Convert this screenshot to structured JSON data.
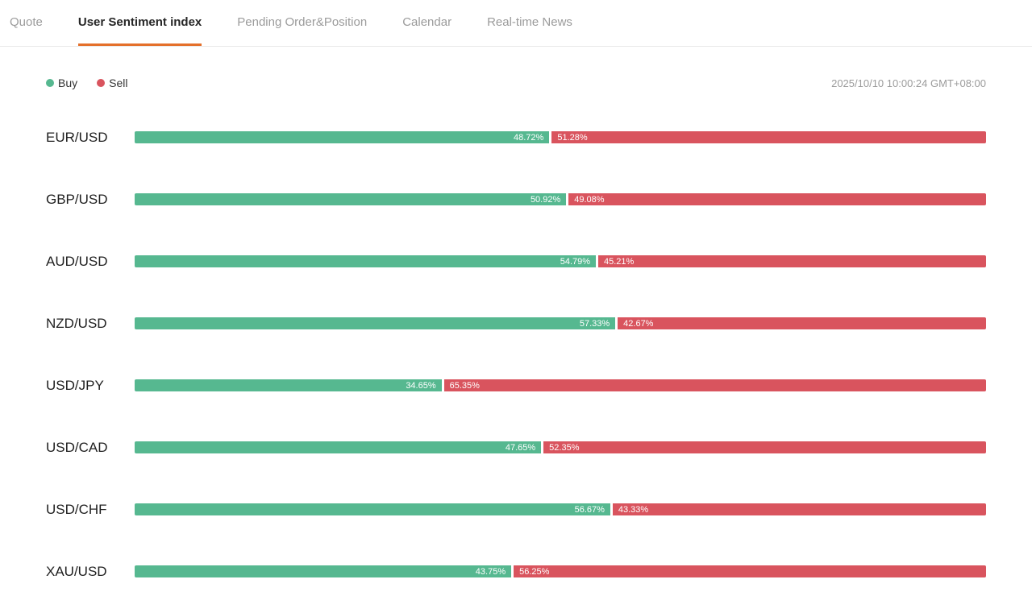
{
  "tabs": [
    {
      "label": "Quote",
      "active": false
    },
    {
      "label": "User Sentiment index",
      "active": true
    },
    {
      "label": "Pending Order&Position",
      "active": false
    },
    {
      "label": "Calendar",
      "active": false
    },
    {
      "label": "Real-time News",
      "active": false
    }
  ],
  "legend": {
    "buy_label": "Buy",
    "sell_label": "Sell"
  },
  "timestamp": "2025/10/10 10:00:24 GMT+08:00",
  "colors": {
    "buy": "#56b890",
    "sell": "#d9545e",
    "accent": "#e4702b"
  },
  "chart_data": {
    "type": "bar",
    "orientation": "horizontal-stacked",
    "title": "User Sentiment index",
    "categories": [
      "EUR/USD",
      "GBP/USD",
      "AUD/USD",
      "NZD/USD",
      "USD/JPY",
      "USD/CAD",
      "USD/CHF",
      "XAU/USD"
    ],
    "series": [
      {
        "name": "Buy",
        "values": [
          48.72,
          50.92,
          54.79,
          57.33,
          34.65,
          47.65,
          56.67,
          43.75
        ]
      },
      {
        "name": "Sell",
        "values": [
          51.28,
          49.08,
          45.21,
          42.67,
          65.35,
          52.35,
          43.33,
          56.25
        ]
      }
    ],
    "value_unit": "%",
    "xlim": [
      0,
      100
    ],
    "legend_position": "top-left",
    "grid": false
  }
}
